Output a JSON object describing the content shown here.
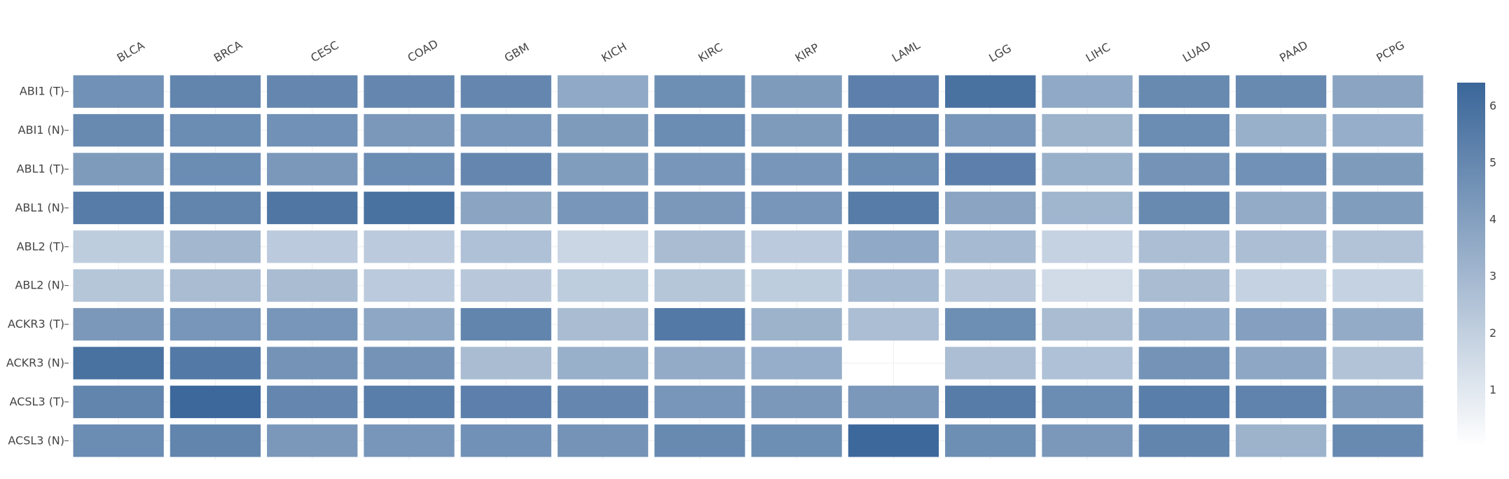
{
  "chart_data": {
    "type": "heatmap",
    "title": "",
    "xlabel": "",
    "ylabel": "",
    "x_tick_side": "top",
    "columns": [
      "BLCA",
      "BRCA",
      "CESC",
      "COAD",
      "GBM",
      "KICH",
      "KIRC",
      "KIRP",
      "LAML",
      "LGG",
      "LIHC",
      "LUAD",
      "PAAD",
      "PCPG"
    ],
    "rows": [
      "ABI1 (T)",
      "ABI1 (N)",
      "ABL1 (T)",
      "ABL1 (N)",
      "ABL2 (T)",
      "ABL2 (N)",
      "ACKR3 (T)",
      "ACKR3 (N)",
      "ACSL3 (T)",
      "ACSL3 (N)"
    ],
    "values": [
      [
        4.6,
        5.1,
        5.0,
        5.0,
        5.0,
        3.6,
        4.7,
        4.2,
        5.3,
        5.9,
        3.6,
        4.9,
        4.9,
        3.8
      ],
      [
        4.9,
        4.8,
        4.6,
        4.3,
        4.4,
        4.2,
        4.8,
        4.2,
        5.0,
        4.4,
        3.2,
        4.8,
        3.3,
        3.4
      ],
      [
        4.2,
        4.8,
        4.3,
        4.8,
        5.0,
        4.1,
        4.4,
        4.4,
        4.8,
        5.3,
        3.3,
        4.5,
        4.6,
        4.2
      ],
      [
        5.5,
        5.1,
        5.7,
        5.9,
        3.8,
        4.4,
        4.3,
        4.4,
        5.5,
        3.8,
        3.1,
        4.9,
        3.5,
        4.1
      ],
      [
        2.1,
        3.0,
        2.2,
        2.2,
        2.6,
        1.7,
        2.8,
        2.2,
        3.6,
        2.9,
        1.9,
        2.7,
        2.7,
        2.5
      ],
      [
        2.4,
        2.8,
        2.8,
        2.2,
        2.3,
        2.1,
        2.4,
        2.1,
        2.9,
        2.3,
        1.5,
        2.8,
        1.9,
        1.9
      ],
      [
        4.3,
        4.4,
        4.4,
        3.7,
        5.1,
        2.8,
        5.6,
        3.2,
        2.7,
        4.7,
        2.8,
        3.6,
        4.0,
        3.5
      ],
      [
        5.9,
        5.6,
        4.5,
        4.5,
        2.8,
        3.3,
        3.5,
        3.4,
        null,
        2.7,
        2.6,
        4.5,
        3.7,
        2.5
      ],
      [
        5.1,
        6.3,
        5.0,
        5.4,
        5.3,
        5.0,
        4.4,
        4.3,
        4.3,
        5.5,
        4.8,
        5.4,
        5.2,
        4.3
      ],
      [
        4.8,
        5.1,
        4.3,
        4.4,
        4.6,
        4.5,
        4.9,
        4.7,
        6.3,
        4.7,
        4.3,
        5.1,
        3.2,
        4.9
      ]
    ],
    "colorscale": {
      "min": 0,
      "max": 6.4,
      "low_color": "#ffffff",
      "high_color": "#3a6699",
      "ticks": [
        1,
        2,
        3,
        4,
        5,
        6
      ]
    },
    "grid": true,
    "legend": "colorbar-right"
  }
}
